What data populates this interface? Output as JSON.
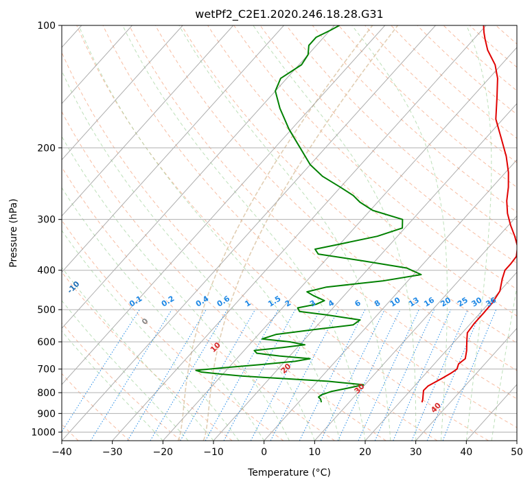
{
  "chart_data": {
    "type": "line",
    "title": "wetPf2_C2E1.2020.246.18.28.G31",
    "xlabel": "Temperature (°C)",
    "ylabel": "Pressure (hPa)",
    "xlim": [
      -40,
      50
    ],
    "ylim": [
      1050,
      100
    ],
    "y_scale": "log",
    "x_ticks": [
      -40,
      -30,
      -20,
      -10,
      0,
      10,
      20,
      30,
      40,
      50
    ],
    "y_ticks": [
      100,
      200,
      300,
      400,
      500,
      600,
      700,
      800,
      900,
      1000
    ],
    "grid": true,
    "skew": true,
    "series": [
      {
        "color": "#e00000",
        "points": [
          {
            "p": 845,
            "t": 24.4
          },
          {
            "p": 830,
            "t": 24.0
          },
          {
            "p": 810,
            "t": 23.3
          },
          {
            "p": 790,
            "t": 22.6
          },
          {
            "p": 770,
            "t": 22.7
          },
          {
            "p": 740,
            "t": 24.0
          },
          {
            "p": 715,
            "t": 25.0
          },
          {
            "p": 700,
            "t": 25.4
          },
          {
            "p": 680,
            "t": 24.8
          },
          {
            "p": 660,
            "t": 25.2
          },
          {
            "p": 630,
            "t": 24.0
          },
          {
            "p": 600,
            "t": 22.5
          },
          {
            "p": 570,
            "t": 21.0
          },
          {
            "p": 540,
            "t": 20.7
          },
          {
            "p": 510,
            "t": 20.7
          },
          {
            "p": 480,
            "t": 20.6
          },
          {
            "p": 450,
            "t": 20.0
          },
          {
            "p": 420,
            "t": 18.3
          },
          {
            "p": 400,
            "t": 17.3
          },
          {
            "p": 385,
            "t": 17.3
          },
          {
            "p": 370,
            "t": 17.1
          },
          {
            "p": 350,
            "t": 15.6
          },
          {
            "p": 330,
            "t": 13.2
          },
          {
            "p": 310,
            "t": 10.4
          },
          {
            "p": 290,
            "t": 7.7
          },
          {
            "p": 270,
            "t": 5.3
          },
          {
            "p": 250,
            "t": 3.2
          },
          {
            "p": 230,
            "t": 0.6
          },
          {
            "p": 210,
            "t": -2.7
          },
          {
            "p": 190,
            "t": -6.8
          },
          {
            "p": 170,
            "t": -11.4
          },
          {
            "p": 150,
            "t": -15.1
          },
          {
            "p": 135,
            "t": -18.3
          },
          {
            "p": 125,
            "t": -21.2
          },
          {
            "p": 115,
            "t": -25.3
          },
          {
            "p": 108,
            "t": -27.8
          },
          {
            "p": 104,
            "t": -29.2
          },
          {
            "p": 100,
            "t": -30.5
          }
        ]
      },
      {
        "color": "#008000",
        "points": [
          {
            "p": 845,
            "t": 4.5
          },
          {
            "p": 830,
            "t": 3.8
          },
          {
            "p": 820,
            "t": 3.0
          },
          {
            "p": 810,
            "t": 3.2
          },
          {
            "p": 795,
            "t": 4.5
          },
          {
            "p": 780,
            "t": 7.2
          },
          {
            "p": 765,
            "t": 9.7
          },
          {
            "p": 750,
            "t": 2.0
          },
          {
            "p": 740,
            "t": -6.0
          },
          {
            "p": 728,
            "t": -16.0
          },
          {
            "p": 720,
            "t": -20.5
          },
          {
            "p": 712,
            "t": -24.6
          },
          {
            "p": 705,
            "t": -26.0
          },
          {
            "p": 695,
            "t": -21.0
          },
          {
            "p": 682,
            "t": -14.0
          },
          {
            "p": 670,
            "t": -8.0
          },
          {
            "p": 660,
            "t": -5.5
          },
          {
            "p": 650,
            "t": -12.0
          },
          {
            "p": 640,
            "t": -17.0
          },
          {
            "p": 630,
            "t": -18.0
          },
          {
            "p": 620,
            "t": -13.0
          },
          {
            "p": 610,
            "t": -9.0
          },
          {
            "p": 600,
            "t": -12.5
          },
          {
            "p": 590,
            "t": -18.5
          },
          {
            "p": 575,
            "t": -16.5
          },
          {
            "p": 560,
            "t": -10.0
          },
          {
            "p": 545,
            "t": -3.0
          },
          {
            "p": 530,
            "t": -2.5
          },
          {
            "p": 515,
            "t": -10.0
          },
          {
            "p": 505,
            "t": -16.0
          },
          {
            "p": 495,
            "t": -17.0
          },
          {
            "p": 485,
            "t": -14.0
          },
          {
            "p": 475,
            "t": -13.0
          },
          {
            "p": 462,
            "t": -16.0
          },
          {
            "p": 452,
            "t": -18.0
          },
          {
            "p": 440,
            "t": -15.0
          },
          {
            "p": 425,
            "t": -5.0
          },
          {
            "p": 410,
            "t": 1.5
          },
          {
            "p": 395,
            "t": -2.5
          },
          {
            "p": 380,
            "t": -12.0
          },
          {
            "p": 365,
            "t": -22.5
          },
          {
            "p": 355,
            "t": -24.0
          },
          {
            "p": 345,
            "t": -20.0
          },
          {
            "p": 330,
            "t": -14.0
          },
          {
            "p": 315,
            "t": -10.5
          },
          {
            "p": 300,
            "t": -12.0
          },
          {
            "p": 285,
            "t": -19.5
          },
          {
            "p": 272,
            "t": -23.5
          },
          {
            "p": 262,
            "t": -26.0
          },
          {
            "p": 250,
            "t": -30.0
          },
          {
            "p": 235,
            "t": -35.5
          },
          {
            "p": 220,
            "t": -40.0
          },
          {
            "p": 200,
            "t": -45.0
          },
          {
            "p": 180,
            "t": -50.5
          },
          {
            "p": 160,
            "t": -56.0
          },
          {
            "p": 145,
            "t": -60.0
          },
          {
            "p": 135,
            "t": -61.2
          },
          {
            "p": 125,
            "t": -59.5
          },
          {
            "p": 118,
            "t": -60.0
          },
          {
            "p": 112,
            "t": -61.5
          },
          {
            "p": 107,
            "t": -61.5
          },
          {
            "p": 103,
            "t": -60.0
          },
          {
            "p": 100,
            "t": -59.0
          }
        ]
      }
    ],
    "dry_adiabats_celsius": [
      -100,
      -90,
      -80,
      -70,
      -60,
      -50,
      -40,
      -30,
      -20,
      -10,
      0,
      10,
      20,
      30,
      40
    ],
    "mixing_ratios": [
      "0.1",
      "0.2",
      "0.4",
      "0.6",
      "1",
      "1.5",
      "2",
      "3",
      "4",
      "6",
      "8",
      "10",
      "13",
      "16",
      "20",
      "25",
      "30",
      "36"
    ],
    "mixing_ratio_values": [
      0.1,
      0.2,
      0.4,
      0.6,
      1,
      1.5,
      2,
      3,
      4,
      6,
      8,
      10,
      13,
      16,
      20,
      25,
      30,
      36
    ],
    "colors": {
      "isotherm": "#999999",
      "isobar": "#b0b0b0",
      "dry_adiabat": "#f4a582",
      "moist_adiabat": "#a6d4a0",
      "mixing_ratio": "#1e88e5",
      "dry_label_cold": "#1f6fb4",
      "dry_label_warm": "#d62728",
      "dry_label_zero": "#888888",
      "dendritic": "#d9c2a0"
    }
  }
}
